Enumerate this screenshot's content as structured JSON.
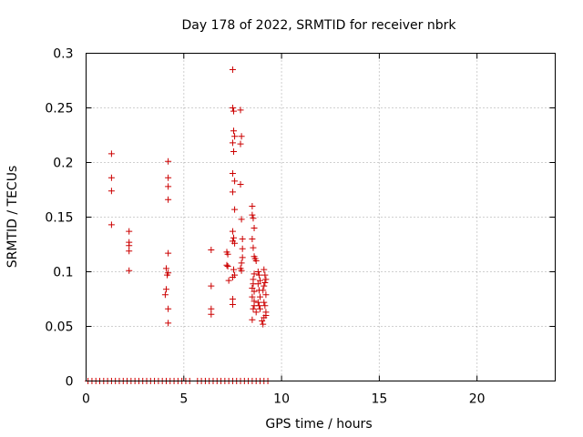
{
  "chart_data": {
    "type": "scatter",
    "title": "Day 178 of 2022, SRMTID for receiver nbrk",
    "xlabel": "GPS time / hours",
    "ylabel": "SRMTID / TECUs",
    "xlim": [
      0,
      24
    ],
    "ylim": [
      0,
      0.3
    ],
    "x_ticks": [
      0,
      5,
      10,
      15,
      20
    ],
    "y_ticks": [
      0,
      0.05,
      0.1,
      0.15,
      0.2,
      0.25,
      0.3
    ],
    "x_tick_labels": [
      "0",
      "5",
      "10",
      "15",
      "20"
    ],
    "y_tick_labels": [
      "0",
      "0.05",
      "0.1",
      "0.15",
      "0.2",
      "0.25",
      "0.3"
    ],
    "grid": true,
    "marker": "+",
    "color": "#cc0000",
    "series": [
      {
        "points": [
          [
            1.3,
            0.208
          ],
          [
            1.3,
            0.186
          ],
          [
            1.3,
            0.174
          ],
          [
            1.3,
            0.143
          ],
          [
            2.2,
            0.137
          ],
          [
            2.2,
            0.127
          ],
          [
            2.2,
            0.124
          ],
          [
            2.2,
            0.119
          ],
          [
            2.2,
            0.101
          ],
          [
            4.2,
            0.201
          ],
          [
            4.2,
            0.186
          ],
          [
            4.2,
            0.178
          ],
          [
            4.2,
            0.166
          ],
          [
            4.2,
            0.117
          ],
          [
            4.1,
            0.103
          ],
          [
            4.2,
            0.099
          ],
          [
            4.15,
            0.097
          ],
          [
            4.1,
            0.084
          ],
          [
            4.05,
            0.079
          ],
          [
            4.2,
            0.066
          ],
          [
            4.2,
            0.053
          ],
          [
            6.4,
            0.12
          ],
          [
            6.4,
            0.087
          ],
          [
            6.4,
            0.066
          ],
          [
            6.4,
            0.061
          ],
          [
            7.2,
            0.118
          ],
          [
            7.25,
            0.116
          ],
          [
            7.2,
            0.106
          ],
          [
            7.25,
            0.105
          ],
          [
            7.3,
            0.092
          ],
          [
            7.5,
            0.285
          ],
          [
            7.5,
            0.25
          ],
          [
            7.55,
            0.247
          ],
          [
            7.55,
            0.229
          ],
          [
            7.6,
            0.224
          ],
          [
            7.5,
            0.218
          ],
          [
            7.55,
            0.21
          ],
          [
            7.5,
            0.19
          ],
          [
            7.6,
            0.183
          ],
          [
            7.5,
            0.173
          ],
          [
            7.6,
            0.157
          ],
          [
            7.5,
            0.137
          ],
          [
            7.55,
            0.131
          ],
          [
            7.5,
            0.128
          ],
          [
            7.6,
            0.126
          ],
          [
            7.55,
            0.102
          ],
          [
            7.6,
            0.097
          ],
          [
            7.5,
            0.095
          ],
          [
            7.5,
            0.075
          ],
          [
            7.5,
            0.07
          ],
          [
            7.9,
            0.248
          ],
          [
            7.95,
            0.224
          ],
          [
            7.9,
            0.217
          ],
          [
            7.9,
            0.18
          ],
          [
            7.95,
            0.148
          ],
          [
            8.0,
            0.13
          ],
          [
            8.0,
            0.121
          ],
          [
            8.0,
            0.113
          ],
          [
            7.95,
            0.108
          ],
          [
            7.9,
            0.103
          ],
          [
            7.95,
            0.101
          ],
          [
            8.5,
            0.16
          ],
          [
            8.5,
            0.152
          ],
          [
            8.55,
            0.149
          ],
          [
            8.6,
            0.14
          ],
          [
            8.5,
            0.13
          ],
          [
            8.55,
            0.122
          ],
          [
            8.6,
            0.114
          ],
          [
            8.65,
            0.112
          ],
          [
            8.7,
            0.11
          ],
          [
            8.6,
            0.098
          ],
          [
            8.55,
            0.093
          ],
          [
            8.5,
            0.085
          ],
          [
            8.6,
            0.082
          ],
          [
            8.5,
            0.077
          ],
          [
            8.6,
            0.069
          ],
          [
            8.55,
            0.066
          ],
          [
            8.7,
            0.063
          ],
          [
            8.5,
            0.056
          ],
          [
            8.6,
            0.073
          ],
          [
            8.55,
            0.089
          ],
          [
            8.8,
            0.1
          ],
          [
            8.85,
            0.097
          ],
          [
            8.9,
            0.092
          ],
          [
            8.8,
            0.089
          ],
          [
            8.85,
            0.083
          ],
          [
            8.9,
            0.077
          ],
          [
            8.8,
            0.072
          ],
          [
            8.85,
            0.069
          ],
          [
            8.9,
            0.066
          ],
          [
            9.1,
            0.102
          ],
          [
            9.15,
            0.097
          ],
          [
            9.2,
            0.093
          ],
          [
            9.1,
            0.087
          ],
          [
            9.05,
            0.083
          ],
          [
            9.2,
            0.079
          ],
          [
            9.1,
            0.072
          ],
          [
            9.15,
            0.069
          ],
          [
            9.2,
            0.063
          ],
          [
            9.1,
            0.058
          ],
          [
            9.0,
            0.055
          ],
          [
            9.05,
            0.052
          ],
          [
            9.2,
            0.06
          ],
          [
            9.15,
            0.09
          ],
          [
            0.1,
            0
          ],
          [
            0.3,
            0
          ],
          [
            0.5,
            0
          ],
          [
            0.7,
            0
          ],
          [
            0.9,
            0
          ],
          [
            1.1,
            0
          ],
          [
            1.3,
            0
          ],
          [
            1.5,
            0
          ],
          [
            1.7,
            0
          ],
          [
            1.9,
            0
          ],
          [
            2.1,
            0
          ],
          [
            2.3,
            0
          ],
          [
            2.5,
            0
          ],
          [
            2.7,
            0
          ],
          [
            2.9,
            0
          ],
          [
            3.1,
            0
          ],
          [
            3.3,
            0
          ],
          [
            3.5,
            0
          ],
          [
            3.7,
            0
          ],
          [
            3.9,
            0
          ],
          [
            4.1,
            0
          ],
          [
            4.3,
            0
          ],
          [
            4.5,
            0
          ],
          [
            4.7,
            0
          ],
          [
            4.9,
            0
          ],
          [
            5.1,
            0
          ],
          [
            5.3,
            0
          ],
          [
            5.7,
            0
          ],
          [
            5.9,
            0
          ],
          [
            6.1,
            0
          ],
          [
            6.3,
            0
          ],
          [
            6.5,
            0
          ],
          [
            6.7,
            0
          ],
          [
            6.9,
            0
          ],
          [
            7.1,
            0
          ],
          [
            7.3,
            0
          ],
          [
            7.5,
            0
          ],
          [
            7.7,
            0
          ],
          [
            7.9,
            0
          ],
          [
            8.1,
            0
          ],
          [
            8.3,
            0
          ],
          [
            8.5,
            0
          ],
          [
            8.7,
            0
          ],
          [
            8.9,
            0
          ],
          [
            9.1,
            0
          ],
          [
            9.3,
            0
          ]
        ]
      }
    ]
  }
}
